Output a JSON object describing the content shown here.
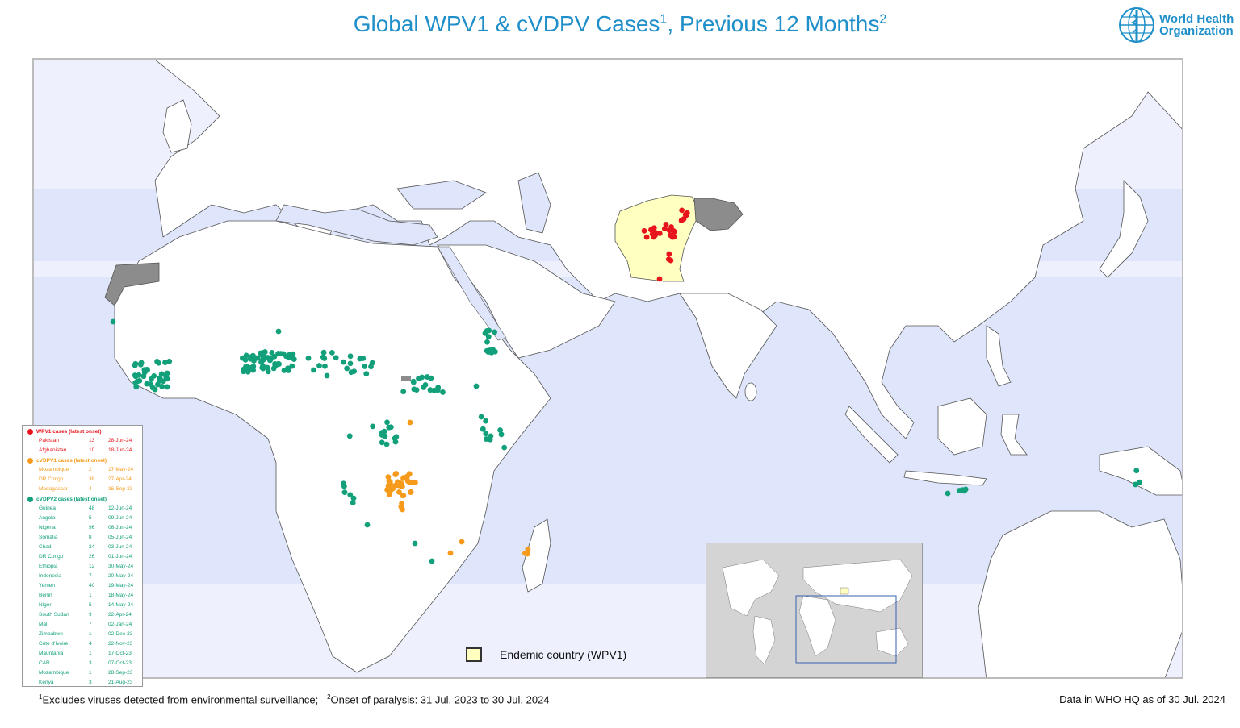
{
  "title": {
    "main": "Global WPV1 & cVDPV Cases",
    "sup1": "1",
    "mid": ", Previous 12 Months",
    "sup2": "2"
  },
  "logo": {
    "line1": "World Health",
    "line2": "Organization",
    "icon": "who-emblem-icon"
  },
  "colors": {
    "wpv1": "#e8141b",
    "cvdpv1": "#f59a1b",
    "cvdpv2": "#12a07a",
    "endemic": "#ffffc0",
    "not_applicable": "#8c8c8c",
    "ocean_band_dark": "#dfe6fb",
    "ocean_band_light": "#eef1fd",
    "title": "#1f8fc9"
  },
  "legend": {
    "wpv1": {
      "heading": "WPV1 cases (latest onset)",
      "rows": [
        {
          "country": "Pakistan",
          "count": "13",
          "date": "28-Jun-24"
        },
        {
          "country": "Afghanistan",
          "count": "10",
          "date": "18-Jun-24"
        }
      ]
    },
    "cvdpv1": {
      "heading": "cVDPV1 cases (latest onset)",
      "rows": [
        {
          "country": "Mozambique",
          "count": "2",
          "date": "17-May-24"
        },
        {
          "country": "DR Congo",
          "count": "38",
          "date": "27-Apr-24"
        },
        {
          "country": "Madagascar",
          "count": "4",
          "date": "16-Sep-23"
        }
      ]
    },
    "cvdpv2": {
      "heading": "cVDPV2 cases (latest onset)",
      "rows": [
        {
          "country": "Guinea",
          "count": "48",
          "date": "12-Jun-24"
        },
        {
          "country": "Angola",
          "count": "5",
          "date": "09-Jun-24"
        },
        {
          "country": "Nigeria",
          "count": "96",
          "date": "06-Jun-24"
        },
        {
          "country": "Somalia",
          "count": "8",
          "date": "05-Jun-24"
        },
        {
          "country": "Chad",
          "count": "24",
          "date": "03-Jun-24"
        },
        {
          "country": "DR Congo",
          "count": "26",
          "date": "01-Jun-24"
        },
        {
          "country": "Ethiopia",
          "count": "12",
          "date": "30-May-24"
        },
        {
          "country": "Indonesia",
          "count": "7",
          "date": "20-May-24"
        },
        {
          "country": "Yemen",
          "count": "40",
          "date": "19-May-24"
        },
        {
          "country": "Benin",
          "count": "1",
          "date": "18-May-24"
        },
        {
          "country": "Niger",
          "count": "5",
          "date": "14-May-24"
        },
        {
          "country": "South Sudan",
          "count": "9",
          "date": "22-Apr-24"
        },
        {
          "country": "Mali",
          "count": "7",
          "date": "02-Jan-24"
        },
        {
          "country": "Zimbabwe",
          "count": "1",
          "date": "02-Dec-23"
        },
        {
          "country": "Côte d'Ivoire",
          "count": "4",
          "date": "22-Nov-23"
        },
        {
          "country": "Mauritania",
          "count": "1",
          "date": "17-Oct-23"
        },
        {
          "country": "CAR",
          "count": "3",
          "date": "07-Oct-23"
        },
        {
          "country": "Mozambique",
          "count": "1",
          "date": "28-Sep-23"
        },
        {
          "country": "Kenya",
          "count": "3",
          "date": "21-Aug-23"
        }
      ]
    }
  },
  "endemic_legend": {
    "label": "Endemic country (WPV1)"
  },
  "footer": {
    "note1_sup": "1",
    "note1": "Excludes viruses detected from environmental surveillance;",
    "note2_sup": "2",
    "note2": "Onset of paralysis: 31 Jul. 2023 to 30 Jul. 2024",
    "as_of": "Data in WHO HQ as of 30 Jul. 2024"
  }
}
